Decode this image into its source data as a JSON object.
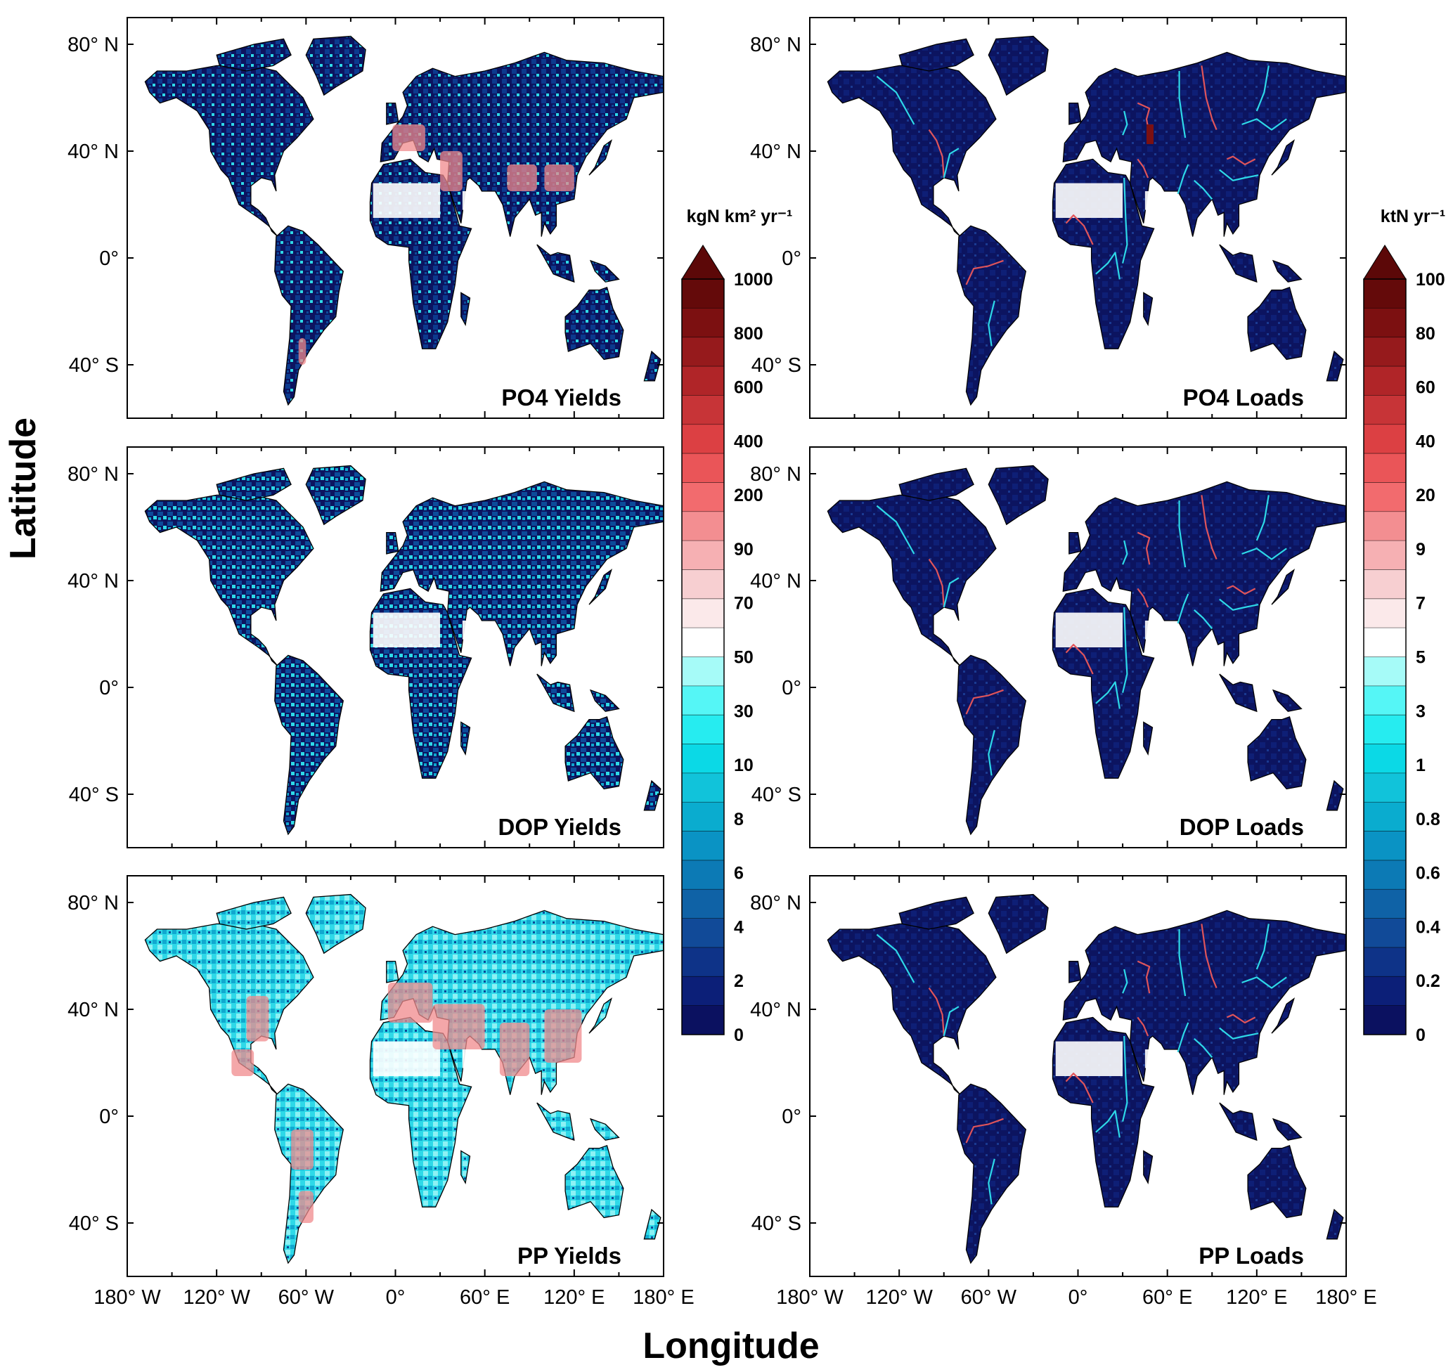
{
  "axes": {
    "x_title": "Longitude",
    "y_title": "Latitude"
  },
  "panels": [
    {
      "title": "PO4 Yields",
      "variable": "PO4",
      "quantity": "Yields"
    },
    {
      "title": "PO4 Loads",
      "variable": "PO4",
      "quantity": "Loads"
    },
    {
      "title": "DOP Yields",
      "variable": "DOP",
      "quantity": "Yields"
    },
    {
      "title": "DOP Loads",
      "variable": "DOP",
      "quantity": "Loads"
    },
    {
      "title": "PP Yields",
      "variable": "PP",
      "quantity": "Yields"
    },
    {
      "title": "PP Loads",
      "variable": "PP",
      "quantity": "Loads"
    }
  ],
  "lat_ticks": [
    "80° N",
    "40° N",
    "0°",
    "40° S"
  ],
  "lon_ticks": [
    "180° W",
    "120° W",
    "60° W",
    "0°",
    "60° E",
    "120° E",
    "180° E"
  ],
  "colorbars": [
    {
      "unit": "kgN km² yr⁻¹",
      "labels": [
        "0",
        "2",
        "4",
        "6",
        "8",
        "10",
        "30",
        "50",
        "70",
        "90",
        "200",
        "400",
        "600",
        "800",
        "1000"
      ]
    },
    {
      "unit": "ktN yr⁻¹",
      "labels": [
        "0",
        "0.2",
        "0.4",
        "0.6",
        "0.8",
        "1",
        "3",
        "5",
        "7",
        "9",
        "20",
        "40",
        "60",
        "80",
        "100"
      ]
    }
  ],
  "colorbar_colors": [
    "#0b1160",
    "#0c1f78",
    "#0e3388",
    "#114a98",
    "#0f62a6",
    "#0c7ab5",
    "#0a93c4",
    "#0aaccf",
    "#11c3da",
    "#0bd9e6",
    "#26ecf0",
    "#55f6f6",
    "#a6fbf8",
    "#ffffff",
    "#fbe9ea",
    "#f7cfd1",
    "#f6b0b3",
    "#f38e91",
    "#f26b6e",
    "#ea5558",
    "#dc4043",
    "#c73437",
    "#b02528",
    "#961a1c",
    "#7c1011",
    "#640a0a"
  ],
  "overflow_color": "#5c0808",
  "land_palette": {
    "dark": "#0c1460",
    "mid": "#0c4b9a",
    "cyan": "#2ed9e8",
    "light": "#8cf1f4",
    "pink": "#f08a8c",
    "red": "#d94044",
    "white": "#ffffff"
  }
}
